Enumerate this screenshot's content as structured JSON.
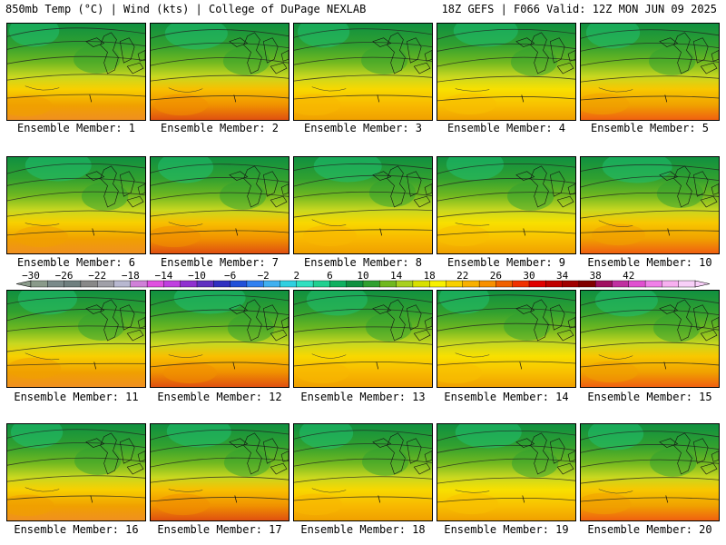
{
  "header": {
    "title": "850mb Temp (°C) | Wind (kts) | College of DuPage NEXLAB",
    "run_info": "18Z GEFS | F066 Valid: 12Z MON JUN 09 2025"
  },
  "members": [
    {
      "label": "Ensemble Member: 1"
    },
    {
      "label": "Ensemble Member: 2"
    },
    {
      "label": "Ensemble Member: 3"
    },
    {
      "label": "Ensemble Member: 4"
    },
    {
      "label": "Ensemble Member: 5"
    },
    {
      "label": "Ensemble Member: 6"
    },
    {
      "label": "Ensemble Member: 7"
    },
    {
      "label": "Ensemble Member: 8"
    },
    {
      "label": "Ensemble Member: 9"
    },
    {
      "label": "Ensemble Member: 10"
    },
    {
      "label": "Ensemble Member: 11"
    },
    {
      "label": "Ensemble Member: 12"
    },
    {
      "label": "Ensemble Member: 13"
    },
    {
      "label": "Ensemble Member: 14"
    },
    {
      "label": "Ensemble Member: 15"
    },
    {
      "label": "Ensemble Member: 16"
    },
    {
      "label": "Ensemble Member: 17"
    },
    {
      "label": "Ensemble Member: 18"
    },
    {
      "label": "Ensemble Member: 19"
    },
    {
      "label": "Ensemble Member: 20"
    }
  ],
  "colorbar": {
    "labels": [
      "−30",
      "−26",
      "−22",
      "−18",
      "−14",
      "−10",
      "−6",
      "−2",
      "2",
      "6",
      "10",
      "14",
      "18",
      "22",
      "26",
      "30",
      "34",
      "38",
      "42"
    ],
    "colors": [
      "#8a9a8a",
      "#7a8a8a",
      "#6f7f7f",
      "#888888",
      "#a0a0a8",
      "#b8b8d0",
      "#d080d8",
      "#e050e0",
      "#c040e0",
      "#9030d0",
      "#6030c0",
      "#3030c0",
      "#2050d8",
      "#3080f0",
      "#40b0f0",
      "#30d0e0",
      "#30e0c0",
      "#20d090",
      "#10b060",
      "#109040",
      "#30a030",
      "#70b820",
      "#a8d020",
      "#d8e000",
      "#f8f000",
      "#f8d000",
      "#f8b000",
      "#f89000",
      "#f06000",
      "#f03000",
      "#e00000",
      "#c00000",
      "#a00000",
      "#800000",
      "#a01060",
      "#c030a0",
      "#e050d0",
      "#f080e8",
      "#f8b0f0",
      "#f8d0f8"
    ]
  }
}
